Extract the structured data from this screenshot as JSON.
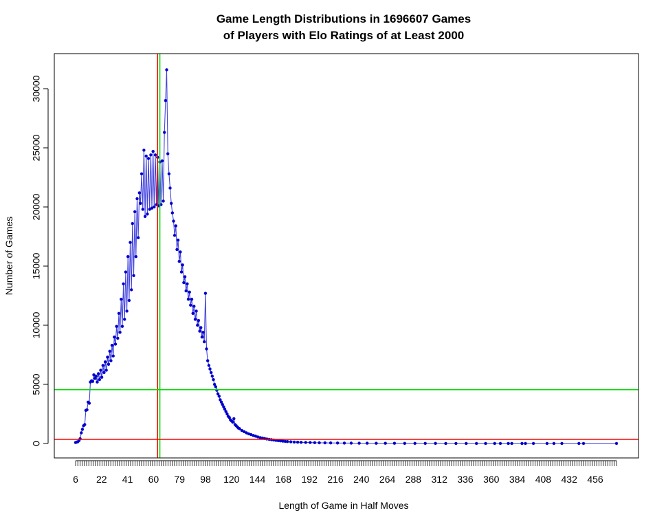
{
  "chart_data": {
    "type": "line",
    "title_lines": [
      "Game Length Distributions in 1696607 Games",
      "of Players with Elo Ratings of at Least 2000"
    ],
    "xlabel": "Length of Game in Half Moves",
    "ylabel": "Number of Games",
    "xlim": [
      6,
      490
    ],
    "ylim": [
      -1200,
      32500
    ],
    "x_tick_labels": [
      "6",
      "22",
      "41",
      "60",
      "79",
      "98",
      "120",
      "144",
      "168",
      "192",
      "216",
      "240",
      "264",
      "288",
      "312",
      "336",
      "360",
      "384",
      "408",
      "432",
      "456"
    ],
    "y_ticks": [
      0,
      5000,
      10000,
      15000,
      20000,
      25000,
      30000
    ],
    "y_tick_labels": [
      "0",
      "5000",
      "10000",
      "15000",
      "20000",
      "25000",
      "30000"
    ],
    "reference_lines": {
      "vertical": [
        {
          "x": 78,
          "color": "#ff0000"
        },
        {
          "x": 80,
          "color": "#00dd00"
        }
      ],
      "horizontal": [
        {
          "y": 4550,
          "color": "#00dd00"
        },
        {
          "y": 350,
          "color": "#ff0000"
        }
      ]
    },
    "series": [
      {
        "color": "#0000cc",
        "line_color": "#4444dd",
        "points": [
          [
            6,
            80
          ],
          [
            7,
            120
          ],
          [
            8,
            150
          ],
          [
            9,
            250
          ],
          [
            10,
            400
          ],
          [
            11,
            900
          ],
          [
            12,
            1200
          ],
          [
            13,
            1500
          ],
          [
            14,
            1600
          ],
          [
            15,
            2800
          ],
          [
            16,
            2850
          ],
          [
            17,
            3500
          ],
          [
            18,
            3400
          ],
          [
            19,
            5200
          ],
          [
            20,
            5300
          ],
          [
            21,
            5250
          ],
          [
            22,
            5800
          ],
          [
            23,
            5500
          ],
          [
            24,
            5700
          ],
          [
            25,
            5200
          ],
          [
            26,
            5900
          ],
          [
            27,
            5400
          ],
          [
            28,
            6200
          ],
          [
            29,
            5600
          ],
          [
            30,
            6600
          ],
          [
            31,
            6000
          ],
          [
            32,
            6900
          ],
          [
            33,
            6200
          ],
          [
            34,
            7300
          ],
          [
            35,
            6700
          ],
          [
            36,
            7800
          ],
          [
            37,
            7000
          ],
          [
            38,
            8300
          ],
          [
            39,
            7400
          ],
          [
            40,
            9000
          ],
          [
            41,
            8400
          ],
          [
            42,
            9900
          ],
          [
            43,
            8900
          ],
          [
            44,
            11000
          ],
          [
            45,
            9400
          ],
          [
            46,
            12200
          ],
          [
            47,
            9900
          ],
          [
            48,
            13500
          ],
          [
            49,
            10500
          ],
          [
            50,
            14500
          ],
          [
            51,
            11200
          ],
          [
            52,
            15800
          ],
          [
            53,
            12100
          ],
          [
            54,
            17000
          ],
          [
            55,
            13000
          ],
          [
            56,
            18600
          ],
          [
            57,
            14200
          ],
          [
            58,
            19600
          ],
          [
            59,
            15800
          ],
          [
            60,
            20700
          ],
          [
            61,
            17400
          ],
          [
            62,
            21200
          ],
          [
            63,
            20300
          ],
          [
            64,
            22800
          ],
          [
            65,
            19800
          ],
          [
            66,
            24800
          ],
          [
            67,
            19200
          ],
          [
            68,
            24300
          ],
          [
            69,
            19400
          ],
          [
            70,
            24100
          ],
          [
            71,
            19800
          ],
          [
            72,
            24400
          ],
          [
            73,
            19900
          ],
          [
            74,
            24700
          ],
          [
            75,
            20000
          ],
          [
            76,
            24400
          ],
          [
            77,
            20200
          ],
          [
            78,
            24200
          ],
          [
            79,
            20100
          ],
          [
            80,
            23800
          ],
          [
            81,
            20200
          ],
          [
            82,
            23900
          ],
          [
            83,
            20500
          ],
          [
            84,
            26300
          ],
          [
            85,
            29000
          ],
          [
            86,
            31600
          ],
          [
            87,
            24500
          ],
          [
            88,
            22800
          ],
          [
            89,
            21600
          ],
          [
            90,
            20300
          ],
          [
            91,
            19500
          ],
          [
            92,
            18800
          ],
          [
            93,
            17600
          ],
          [
            94,
            18400
          ],
          [
            95,
            16400
          ],
          [
            96,
            17200
          ],
          [
            97,
            15400
          ],
          [
            98,
            16200
          ],
          [
            99,
            14500
          ],
          [
            100,
            15100
          ],
          [
            101,
            13600
          ],
          [
            102,
            14100
          ],
          [
            103,
            12900
          ],
          [
            104,
            13500
          ],
          [
            105,
            12200
          ],
          [
            106,
            12800
          ],
          [
            107,
            11700
          ],
          [
            108,
            12200
          ],
          [
            109,
            11000
          ],
          [
            110,
            11600
          ],
          [
            111,
            10500
          ],
          [
            112,
            11200
          ],
          [
            113,
            10000
          ],
          [
            114,
            10400
          ],
          [
            115,
            9500
          ],
          [
            116,
            9800
          ],
          [
            117,
            9000
          ],
          [
            118,
            9400
          ],
          [
            119,
            8600
          ],
          [
            120,
            12700
          ],
          [
            121,
            8000
          ],
          [
            122,
            7000
          ],
          [
            123,
            6600
          ],
          [
            124,
            6300
          ],
          [
            125,
            6000
          ],
          [
            126,
            5700
          ],
          [
            127,
            5400
          ],
          [
            128,
            5000
          ],
          [
            129,
            4800
          ],
          [
            130,
            4500
          ],
          [
            131,
            4200
          ],
          [
            132,
            4000
          ],
          [
            133,
            3700
          ],
          [
            134,
            3500
          ],
          [
            135,
            3300
          ],
          [
            136,
            3100
          ],
          [
            137,
            2900
          ],
          [
            138,
            2700
          ],
          [
            139,
            2500
          ],
          [
            140,
            2300
          ],
          [
            141,
            2200
          ],
          [
            142,
            2000
          ],
          [
            143,
            1900
          ],
          [
            144,
            1800
          ],
          [
            145,
            2100
          ],
          [
            146,
            1600
          ],
          [
            147,
            1500
          ],
          [
            148,
            1400
          ],
          [
            149,
            1300
          ],
          [
            150,
            1250
          ],
          [
            152,
            1100
          ],
          [
            154,
            1000
          ],
          [
            156,
            900
          ],
          [
            158,
            820
          ],
          [
            160,
            750
          ],
          [
            162,
            680
          ],
          [
            164,
            620
          ],
          [
            166,
            560
          ],
          [
            168,
            500
          ],
          [
            170,
            460
          ],
          [
            172,
            420
          ],
          [
            174,
            380
          ],
          [
            176,
            350
          ],
          [
            178,
            320
          ],
          [
            180,
            290
          ],
          [
            182,
            260
          ],
          [
            184,
            240
          ],
          [
            186,
            220
          ],
          [
            188,
            200
          ],
          [
            190,
            180
          ],
          [
            192,
            160
          ],
          [
            195,
            140
          ],
          [
            198,
            120
          ],
          [
            201,
            110
          ],
          [
            204,
            100
          ],
          [
            208,
            90
          ],
          [
            212,
            80
          ],
          [
            216,
            70
          ],
          [
            220,
            60
          ],
          [
            225,
            50
          ],
          [
            230,
            45
          ],
          [
            236,
            40
          ],
          [
            242,
            35
          ],
          [
            248,
            30
          ],
          [
            255,
            25
          ],
          [
            262,
            22
          ],
          [
            270,
            20
          ],
          [
            278,
            17
          ],
          [
            286,
            15
          ],
          [
            295,
            13
          ],
          [
            304,
            11
          ],
          [
            313,
            10
          ],
          [
            322,
            9
          ],
          [
            331,
            8
          ],
          [
            340,
            7
          ],
          [
            349,
            6
          ],
          [
            358,
            5
          ],
          [
            366,
            5
          ],
          [
            374,
            4
          ],
          [
            379,
            4
          ],
          [
            386,
            3
          ],
          [
            389,
            3
          ],
          [
            398,
            3
          ],
          [
            401,
            3
          ],
          [
            408,
            3
          ],
          [
            420,
            3
          ],
          [
            426,
            3
          ],
          [
            433,
            3
          ],
          [
            448,
            3
          ],
          [
            452,
            3
          ],
          [
            481,
            3
          ]
        ]
      }
    ]
  }
}
